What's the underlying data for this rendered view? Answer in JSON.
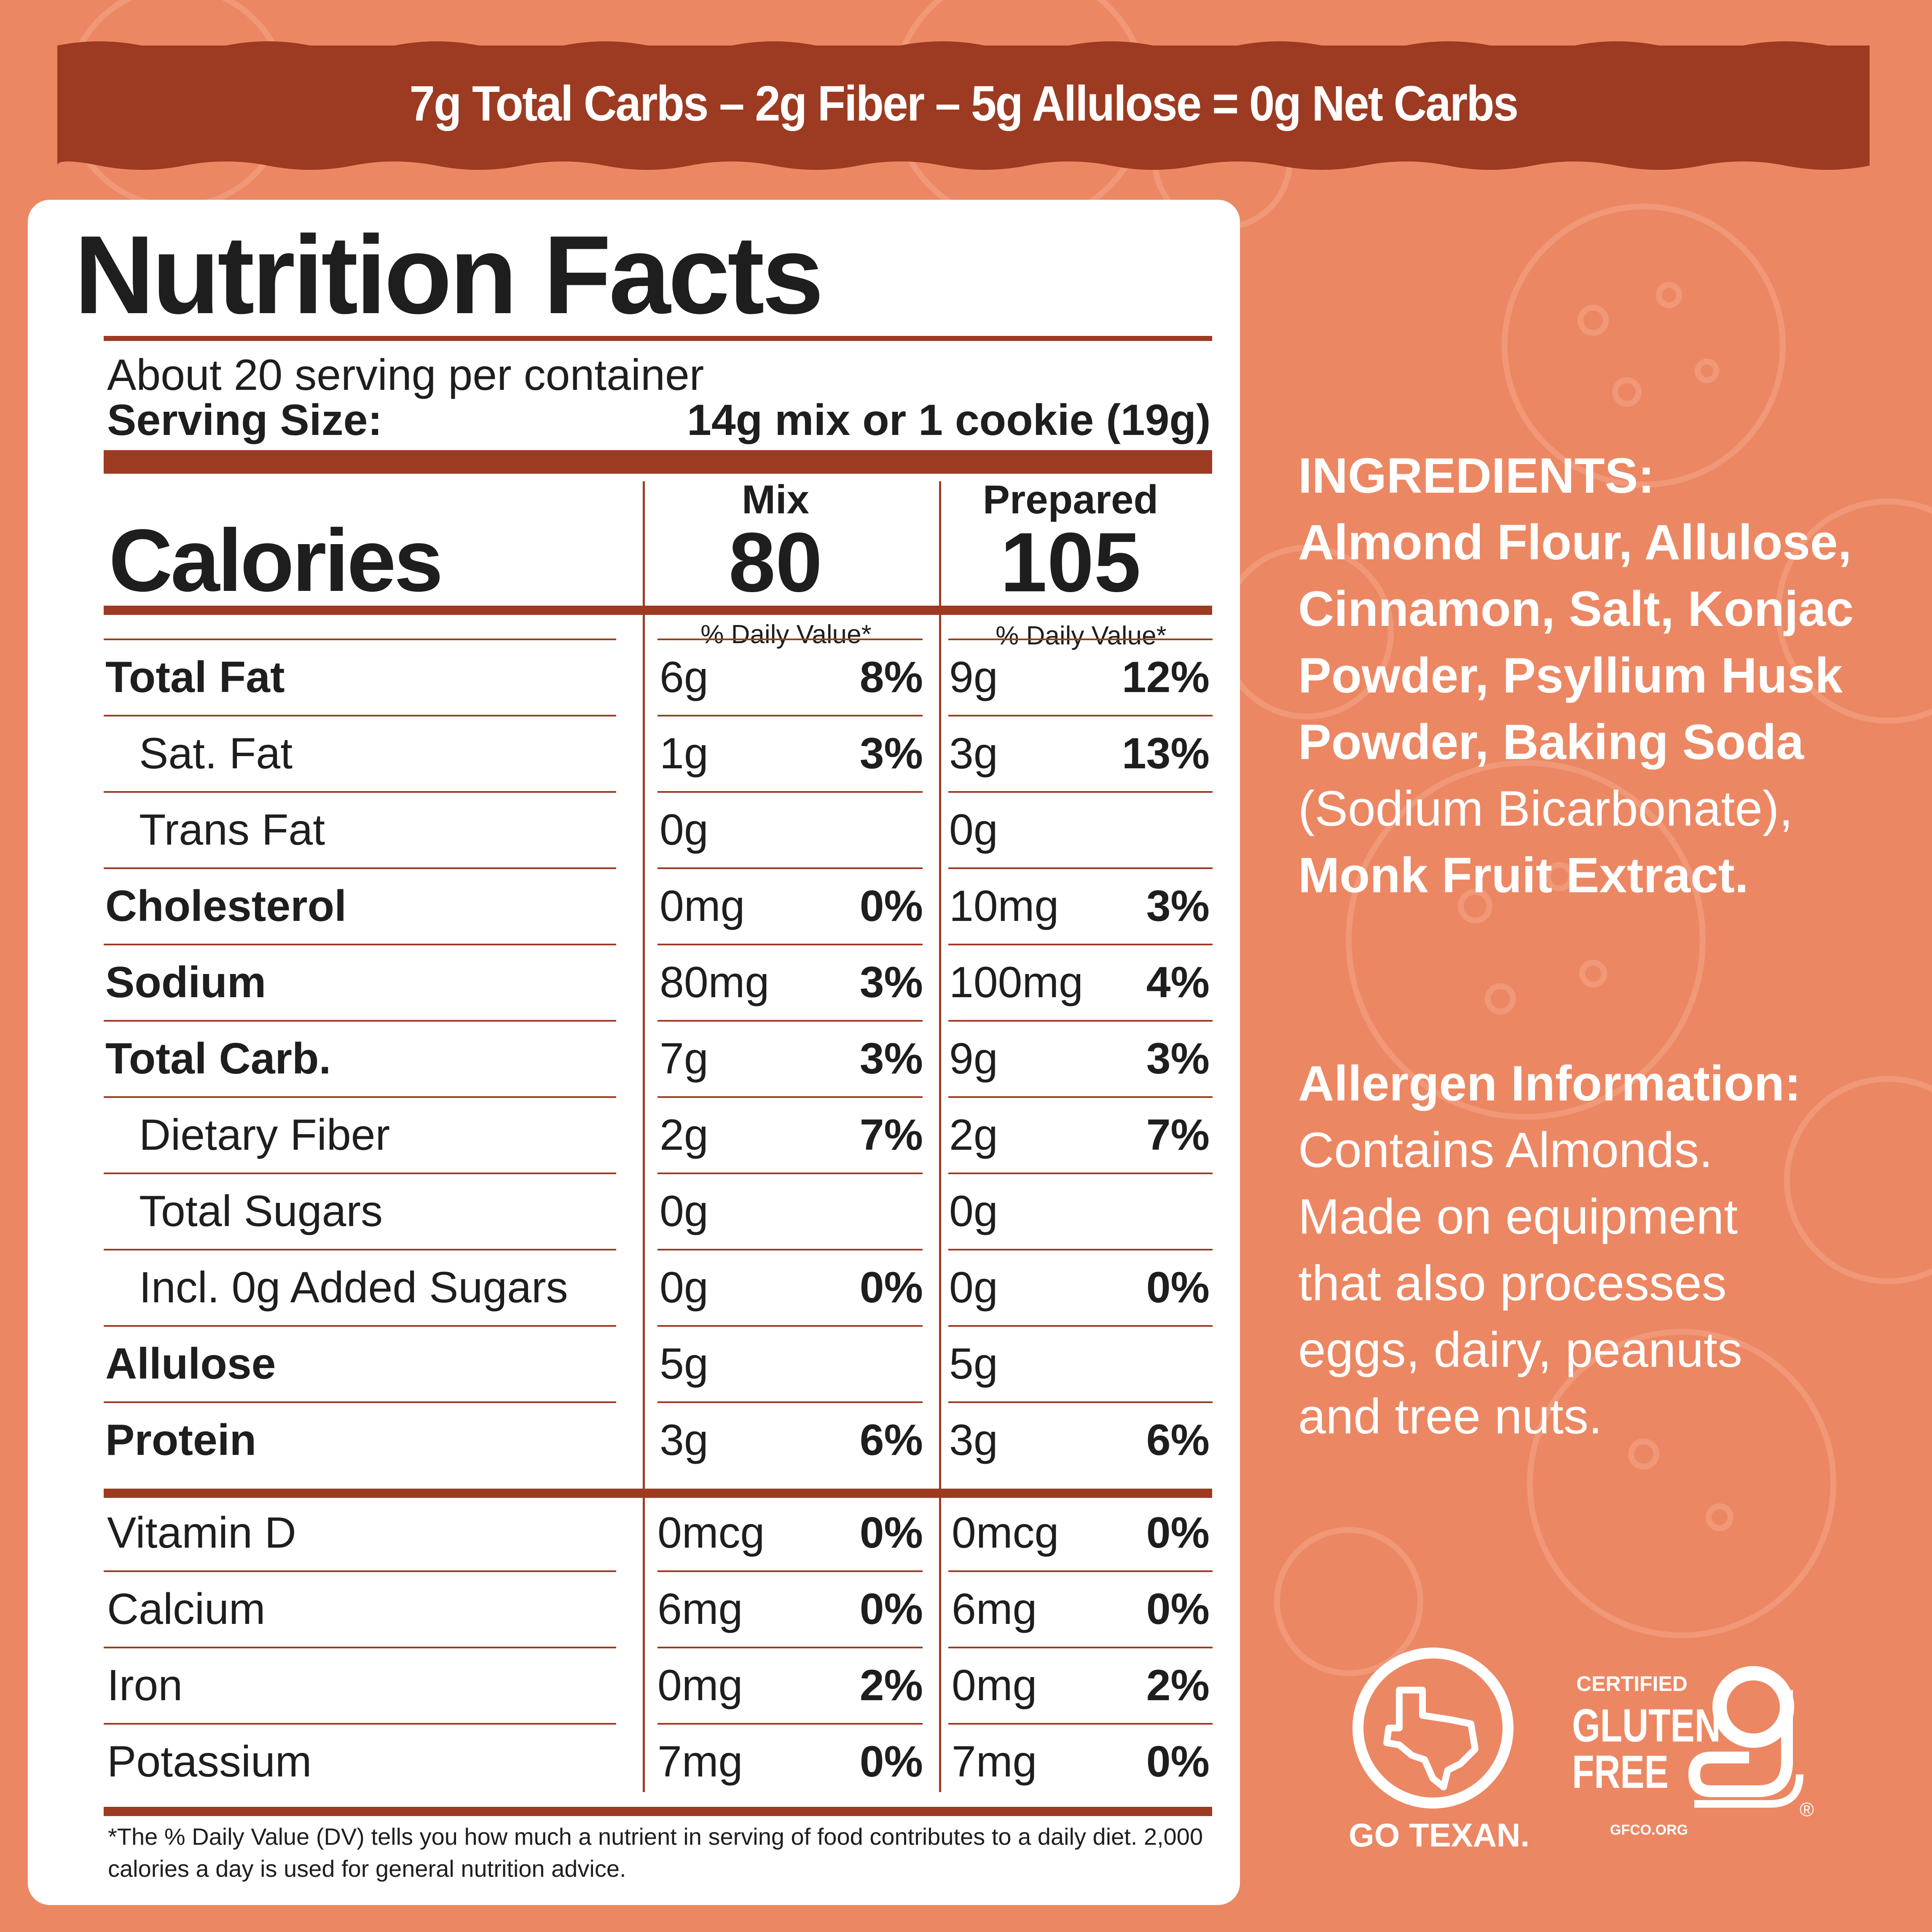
{
  "banner": {
    "text": "7g  Total Carbs  –  2g Fiber – 5g Allulose = 0g Net Carbs"
  },
  "nutrition": {
    "title": "Nutrition Facts",
    "servings": "About 20 serving per container",
    "serving_size_label": "Serving Size:",
    "serving_size_value": "14g mix or 1 cookie (19g)",
    "calories_label": "Calories",
    "columns": [
      {
        "header": "Mix",
        "calories": "80",
        "dv_label": "% Daily Value*"
      },
      {
        "header": "Prepared",
        "calories": "105",
        "dv_label": "% Daily Value*"
      }
    ],
    "rows": [
      {
        "label": "Total Fat",
        "bold": true,
        "indent": false,
        "mix": "6g",
        "mix_pct": "8%",
        "prep": "9g",
        "prep_pct": "12%"
      },
      {
        "label": "Sat. Fat",
        "bold": false,
        "indent": true,
        "mix": "1g",
        "mix_pct": "3%",
        "prep": "3g",
        "prep_pct": "13%"
      },
      {
        "label": "Trans Fat",
        "bold": false,
        "indent": true,
        "mix": "0g",
        "mix_pct": "",
        "prep": "0g",
        "prep_pct": ""
      },
      {
        "label": "Cholesterol",
        "bold": true,
        "indent": false,
        "mix": "0mg",
        "mix_pct": "0%",
        "prep": "10mg",
        "prep_pct": "3%"
      },
      {
        "label": "Sodium",
        "bold": true,
        "indent": false,
        "mix": "80mg",
        "mix_pct": "3%",
        "prep": "100mg",
        "prep_pct": "4%"
      },
      {
        "label": "Total Carb.",
        "bold": true,
        "indent": false,
        "mix": "7g",
        "mix_pct": "3%",
        "prep": "9g",
        "prep_pct": "3%"
      },
      {
        "label": "Dietary Fiber",
        "bold": false,
        "indent": true,
        "mix": "2g",
        "mix_pct": "7%",
        "prep": "2g",
        "prep_pct": "7%"
      },
      {
        "label": "Total Sugars",
        "bold": false,
        "indent": true,
        "mix": "0g",
        "mix_pct": "",
        "prep": "0g",
        "prep_pct": ""
      },
      {
        "label": "Incl. 0g Added Sugars",
        "bold": false,
        "indent": true,
        "mix": "0g",
        "mix_pct": "0%",
        "prep": "0g",
        "prep_pct": "0%"
      },
      {
        "label": "Allulose",
        "bold": true,
        "indent": false,
        "mix": "5g",
        "mix_pct": "",
        "prep": "5g",
        "prep_pct": ""
      },
      {
        "label": "Protein",
        "bold": true,
        "indent": false,
        "mix": "3g",
        "mix_pct": "6%",
        "prep": "3g",
        "prep_pct": "6%"
      }
    ],
    "vitamins": [
      {
        "label": "Vitamin D",
        "mix": "0mcg",
        "mix_pct": "0%",
        "prep": "0mcg",
        "prep_pct": "0%"
      },
      {
        "label": "Calcium",
        "mix": "6mg",
        "mix_pct": "0%",
        "prep": "6mg",
        "prep_pct": "0%"
      },
      {
        "label": "Iron",
        "mix": "0mg",
        "mix_pct": "2%",
        "prep": "0mg",
        "prep_pct": "2%"
      },
      {
        "label": "Potassium",
        "mix": "7mg",
        "mix_pct": "0%",
        "prep": "7mg",
        "prep_pct": "0%"
      }
    ],
    "footnote": "*The % Daily Value (DV) tells you how much a nutrient in serving of food contributes to a daily diet. 2,000 calories a day is used for general nutrition advice."
  },
  "ingredients": {
    "heading": "INGREDIENTS:",
    "bold_lines": [
      "Almond Flour, Allulose,",
      "Cinnamon, Salt, Konjac",
      "Powder, Psyllium Husk",
      "Powder, Baking Soda"
    ],
    "regular_line": "(Sodium Bicarbonate),",
    "last_bold_line": "Monk Fruit Extract."
  },
  "allergen": {
    "heading": "Allergen Information:",
    "lines": [
      "Contains Almonds.",
      "Made on equipment",
      "that also processes",
      "eggs, dairy, peanuts",
      "and tree nuts."
    ]
  },
  "badges": {
    "go_texan": {
      "icon": "texas-state-icon",
      "text": "GO TEXAN."
    },
    "gluten_free": {
      "icon": "gfco-g-icon",
      "certified": "CERTIFIED",
      "line1": "GLUTEN",
      "line2": "FREE",
      "site": "GFCO.ORG",
      "reg": "®"
    }
  },
  "colors": {
    "background": "#ec8763",
    "brand": "#9c3b22",
    "text": "#1e1e1e"
  }
}
